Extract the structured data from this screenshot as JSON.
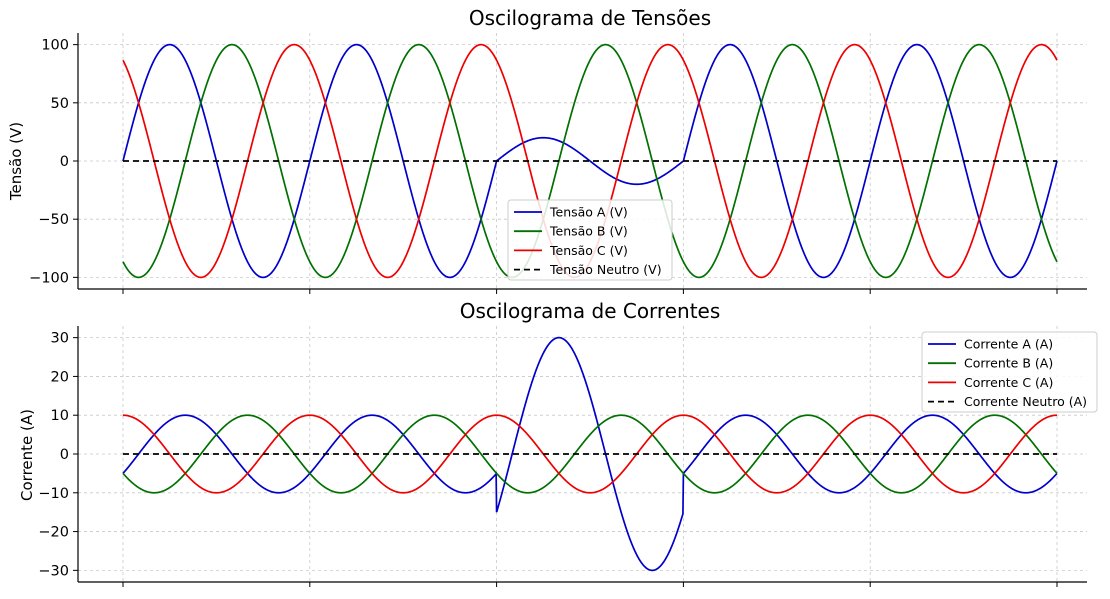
{
  "chart_data": [
    {
      "type": "line",
      "title": "Oscilograma de Tensões",
      "xlabel": "",
      "ylabel": "Tensão (V)",
      "xlim": [
        0,
        0.1
      ],
      "ylim": [
        -110,
        110
      ],
      "yticks": [
        100,
        50,
        0,
        -50,
        -100
      ],
      "ytick_labels": [
        "100",
        "50",
        "0",
        "−50",
        "−100"
      ],
      "xticks": [
        0,
        0.02,
        0.04,
        0.06,
        0.08,
        0.1
      ],
      "grid": true,
      "legend": "bottom-center",
      "frequency_hz": 50,
      "fault_window": [
        0.04,
        0.06
      ],
      "series": [
        {
          "name": "Tensão A (V)",
          "color": "#0000cc",
          "amplitude": 100,
          "phase_deg": 0,
          "fault_amplitude": 20,
          "style": "solid"
        },
        {
          "name": "Tensão B (V)",
          "color": "#007000",
          "amplitude": 100,
          "phase_deg": -120,
          "fault_amplitude": 100,
          "style": "solid"
        },
        {
          "name": "Tensão C (V)",
          "color": "#ee0000",
          "amplitude": 100,
          "phase_deg": 120,
          "fault_amplitude": 100,
          "style": "solid"
        },
        {
          "name": "Tensão Neutro (V)",
          "color": "#000000",
          "amplitude": 0,
          "phase_deg": 0,
          "fault_amplitude": 0,
          "style": "dashed"
        }
      ]
    },
    {
      "type": "line",
      "title": "Oscilograma de Correntes",
      "xlabel": "",
      "ylabel": "Corrente (A)",
      "xlim": [
        0,
        0.1
      ],
      "ylim": [
        -33,
        33
      ],
      "yticks": [
        30,
        20,
        10,
        0,
        -10,
        -20,
        -30
      ],
      "ytick_labels": [
        "30",
        "20",
        "10",
        "0",
        "−10",
        "−20",
        "−30"
      ],
      "xticks": [
        0,
        0.02,
        0.04,
        0.06,
        0.08,
        0.1
      ],
      "grid": true,
      "legend": "top-right",
      "frequency_hz": 50,
      "fault_window": [
        0.04,
        0.06
      ],
      "series": [
        {
          "name": "Corrente A (A)",
          "color": "#0000cc",
          "amplitude": 10,
          "phase_deg": -30,
          "fault_amplitude": 30,
          "style": "solid"
        },
        {
          "name": "Corrente B (A)",
          "color": "#007000",
          "amplitude": 10,
          "phase_deg": -150,
          "fault_amplitude": 10,
          "style": "solid"
        },
        {
          "name": "Corrente C (A)",
          "color": "#ee0000",
          "amplitude": 10,
          "phase_deg": 90,
          "fault_amplitude": 10,
          "style": "solid"
        },
        {
          "name": "Corrente Neutro (A)",
          "color": "#000000",
          "amplitude": 0,
          "phase_deg": 0,
          "fault_amplitude": 0,
          "style": "dashed"
        }
      ]
    }
  ]
}
